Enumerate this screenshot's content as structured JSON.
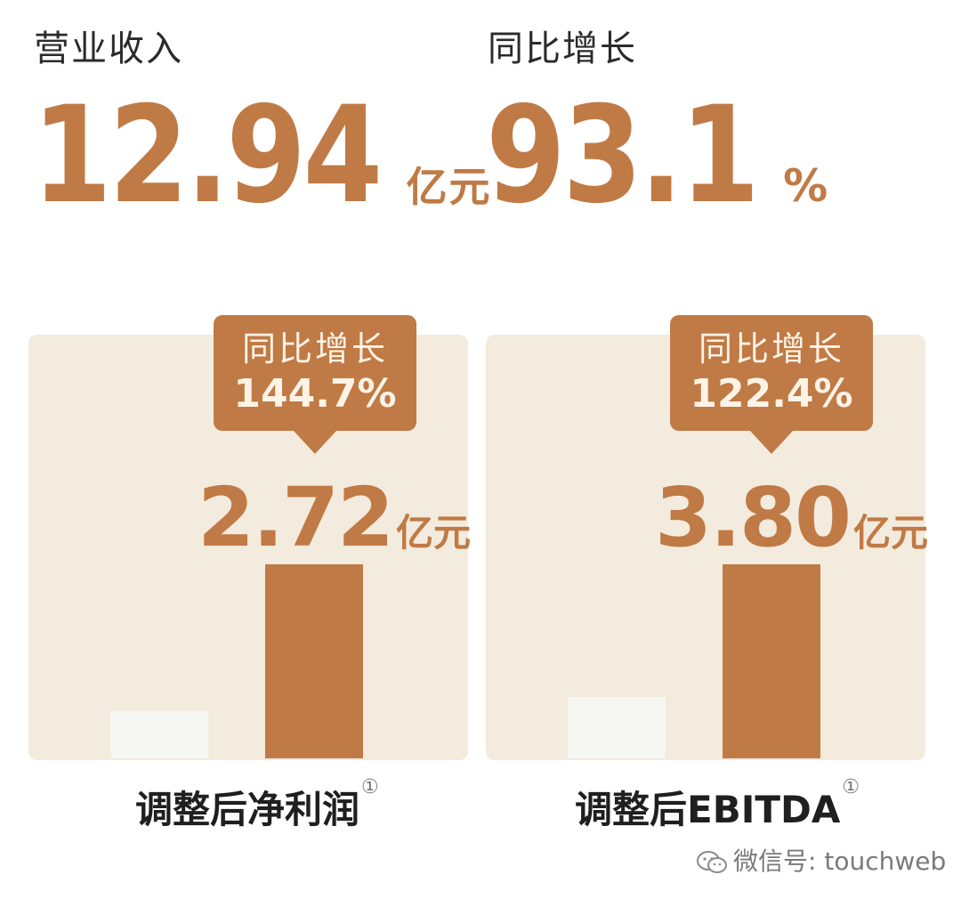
{
  "headline": {
    "revenue_label": "营业收入",
    "revenue_value": "12.94",
    "revenue_unit": "亿元",
    "growth_label": "同比增长",
    "growth_value": "93.1",
    "growth_unit": "%"
  },
  "chart_data": [
    {
      "type": "bar",
      "xlabel": "调整后净利润",
      "footnote": "①",
      "unit": "亿元",
      "values": [
        null,
        2.72
      ],
      "value_label": "2.72",
      "callout_label": "同比增长",
      "callout_value": "144.7%",
      "growth_pct": 144.7
    },
    {
      "type": "bar",
      "xlabel": "调整后EBITDA",
      "footnote": "①",
      "unit": "亿元",
      "values": [
        null,
        3.8
      ],
      "value_label": "3.80",
      "callout_label": "同比增长",
      "callout_value": "122.4%",
      "growth_pct": 122.4
    }
  ],
  "colors": {
    "accent": "#c07a45",
    "panel": "#f3ebde",
    "prev_bar": "#f6f6f2"
  },
  "watermark": {
    "icon": "wechat-icon",
    "text": "微信号: touchweb"
  }
}
